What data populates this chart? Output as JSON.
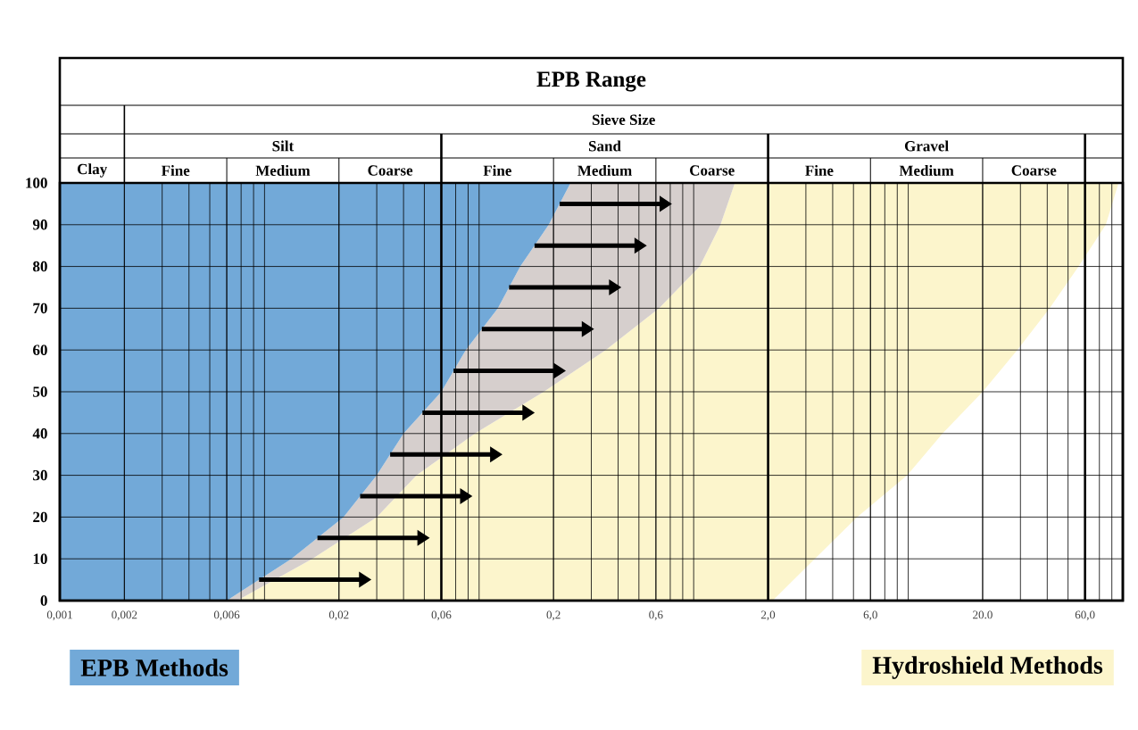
{
  "chart_data": {
    "type": "area",
    "title": "EPB Range",
    "annotations": [
      "Sieve Size",
      "Clay",
      "Silt",
      "Sand",
      "Gravel",
      "Fine",
      "Medium",
      "Coarse",
      "Fine",
      "Medium",
      "Coarse",
      "Fine",
      "Medium",
      "Coarse"
    ],
    "series": [
      {
        "name": "EPB Methods",
        "color": "#72a9d8",
        "x": [
          0.001,
          0.006,
          0.012,
          0.021,
          0.03,
          0.04,
          0.06,
          0.078,
          0.11,
          0.14,
          0.19,
          0.24,
          0.001
        ],
        "values": [
          0,
          0,
          10,
          20,
          30,
          40,
          50,
          60,
          70,
          80,
          90,
          100,
          100
        ]
      },
      {
        "color": "#d6cfcd",
        "x": [
          0.006,
          0.0067,
          0.015,
          0.03,
          0.046,
          0.086,
          0.18,
          0.35,
          0.62,
          0.96,
          1.2,
          1.4,
          0.24,
          0.19,
          0.14,
          0.11,
          0.078,
          0.06,
          0.04,
          0.03,
          0.021,
          0.012
        ],
        "values": [
          0,
          0,
          10,
          20,
          30,
          40,
          50,
          60,
          70,
          80,
          90,
          100,
          100,
          90,
          80,
          70,
          60,
          50,
          40,
          30,
          20,
          10
        ]
      },
      {
        "name": "Hydroshield Methods",
        "color": "#fcf5cc",
        "x": [
          0.0067,
          2.1,
          3.3,
          5.2,
          8.9,
          13,
          20,
          29,
          41,
          56,
          75,
          86,
          1.4,
          1.2,
          0.96,
          0.62,
          0.35,
          0.18,
          0.086,
          0.046,
          0.03,
          0.015
        ],
        "values": [
          0,
          0,
          10,
          20,
          30,
          40,
          50,
          60,
          70,
          80,
          90,
          100,
          100,
          90,
          80,
          70,
          60,
          50,
          40,
          30,
          20,
          10
        ]
      }
    ],
    "log": "x",
    "grid": true,
    "legend": "bottom",
    "xlim": [
      0.001,
      90
    ],
    "ylim": [
      0,
      100
    ],
    "xticks": [
      {
        "value": 0.001,
        "label": "0,001"
      },
      {
        "value": 0.002,
        "label": "0,002"
      },
      {
        "value": 0.006,
        "label": "0,006"
      },
      {
        "value": 0.02,
        "label": "0,02"
      },
      {
        "value": 0.06,
        "label": "0,06"
      },
      {
        "value": 0.2,
        "label": "0,2"
      },
      {
        "value": 0.6,
        "label": "0,6"
      },
      {
        "value": 2,
        "label": "2,0"
      },
      {
        "value": 6,
        "label": "6,0"
      },
      {
        "value": 20,
        "label": "20.0"
      },
      {
        "value": 60,
        "label": "60,0"
      }
    ],
    "yticks": [
      0,
      10,
      20,
      30,
      40,
      50,
      60,
      70,
      80,
      90,
      100
    ]
  }
}
